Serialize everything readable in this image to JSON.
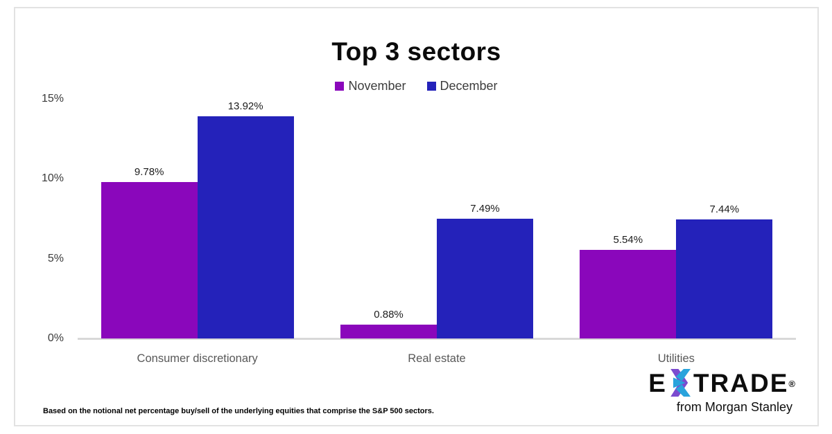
{
  "chart_data": {
    "type": "bar",
    "title": "Top 3 sectors",
    "categories": [
      "Consumer discretionary",
      "Real estate",
      "Utilities"
    ],
    "series": [
      {
        "name": "November",
        "color": "#8a07bb",
        "values": [
          9.78,
          0.88,
          5.54
        ]
      },
      {
        "name": "December",
        "color": "#2422ba",
        "values": [
          13.92,
          7.49,
          7.44
        ]
      }
    ],
    "value_suffix": "%",
    "ylim": [
      0,
      15
    ],
    "yticks": [
      0,
      5,
      10,
      15
    ],
    "ytick_labels": [
      "0%",
      "5%",
      "10%",
      "15%"
    ],
    "grid": false,
    "legend_position": "top",
    "xlabel": "",
    "ylabel": ""
  },
  "footnote": "Based on the notional net percentage buy/sell of the underlying equities that comprise the S&P 500 sectors.",
  "logo": {
    "brand_left": "E",
    "brand_right": "TRADE",
    "registered_mark": "®",
    "tagline": "from Morgan Stanley",
    "star_purple": "#7b4bcf",
    "star_cyan": "#29a3dc"
  }
}
